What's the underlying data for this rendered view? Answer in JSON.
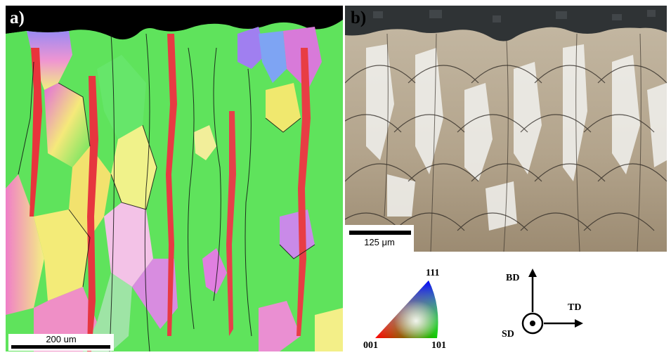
{
  "panels": {
    "a": {
      "label": "a)",
      "scalebar": "200 um"
    },
    "b": {
      "label": "b)",
      "scalebar": "125 μm"
    }
  },
  "ipf_key": {
    "corner_001": "001",
    "corner_101": "101",
    "corner_111": "111"
  },
  "axes": {
    "bd": "BD",
    "td": "TD",
    "sd": "SD"
  },
  "colors": {
    "green_grain": "#5be55a",
    "red_grain": "#e8343c",
    "magenta_grain": "#d86fe0",
    "yellow_grain": "#f0f07a",
    "blue_grain": "#6d7bf0",
    "micro_bg": "#b9ab95",
    "mount_dark": "#2d3133"
  }
}
